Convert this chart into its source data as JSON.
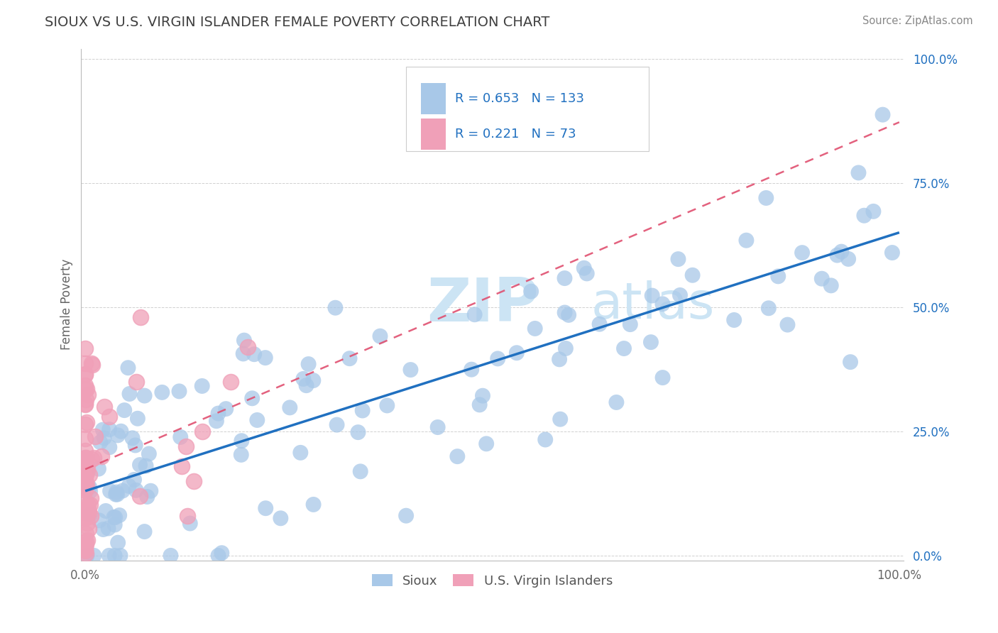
{
  "title": "SIOUX VS U.S. VIRGIN ISLANDER FEMALE POVERTY CORRELATION CHART",
  "source": "Source: ZipAtlas.com",
  "ylabel": "Female Poverty",
  "legend_labels": [
    "Sioux",
    "U.S. Virgin Islanders"
  ],
  "sioux_R": 0.653,
  "sioux_N": 133,
  "vi_R": 0.221,
  "vi_N": 73,
  "sioux_color": "#a8c8e8",
  "sioux_line_color": "#2070c0",
  "vi_color": "#f0a0b8",
  "vi_line_color": "#e05070",
  "background_color": "#ffffff",
  "grid_color": "#d0d0d0",
  "title_color": "#404040",
  "source_color": "#888888",
  "ytick_labels": [
    "0.0%",
    "25.0%",
    "50.0%",
    "75.0%",
    "100.0%"
  ],
  "ytick_values": [
    0.0,
    0.25,
    0.5,
    0.75,
    1.0
  ],
  "watermark_color": "#cce4f4",
  "legend_box_color": "#e8e8e8"
}
